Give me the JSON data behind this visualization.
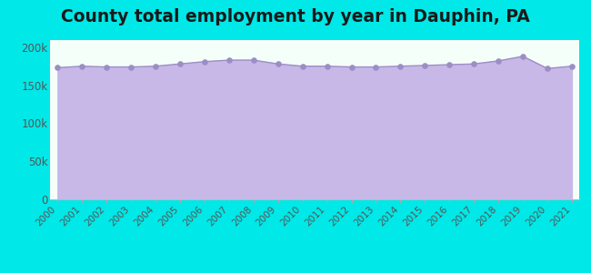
{
  "title": "County total employment by year in Dauphin, PA",
  "years": [
    2000,
    2001,
    2002,
    2003,
    2004,
    2005,
    2006,
    2007,
    2008,
    2009,
    2010,
    2011,
    2012,
    2013,
    2014,
    2015,
    2016,
    2017,
    2018,
    2019,
    2020,
    2021
  ],
  "values": [
    173000,
    175000,
    174000,
    174000,
    175000,
    178000,
    181000,
    183000,
    183000,
    178000,
    175000,
    175000,
    174000,
    174000,
    175000,
    176000,
    177000,
    178000,
    182000,
    188000,
    172000,
    175000
  ],
  "line_color": "#9b8ec4",
  "fill_color": "#c8b8e8",
  "marker_color": "#9b8ec4",
  "background_outer": "#00e8e8",
  "background_inner": "#f5fffa",
  "title_color": "#1a1a1a",
  "tick_label_color": "#555555",
  "ylim": [
    0,
    210000
  ],
  "yticks": [
    0,
    50000,
    100000,
    150000,
    200000
  ],
  "ytick_labels": [
    "0",
    "50k",
    "100k",
    "150k",
    "200k"
  ],
  "title_fontsize": 13.5
}
